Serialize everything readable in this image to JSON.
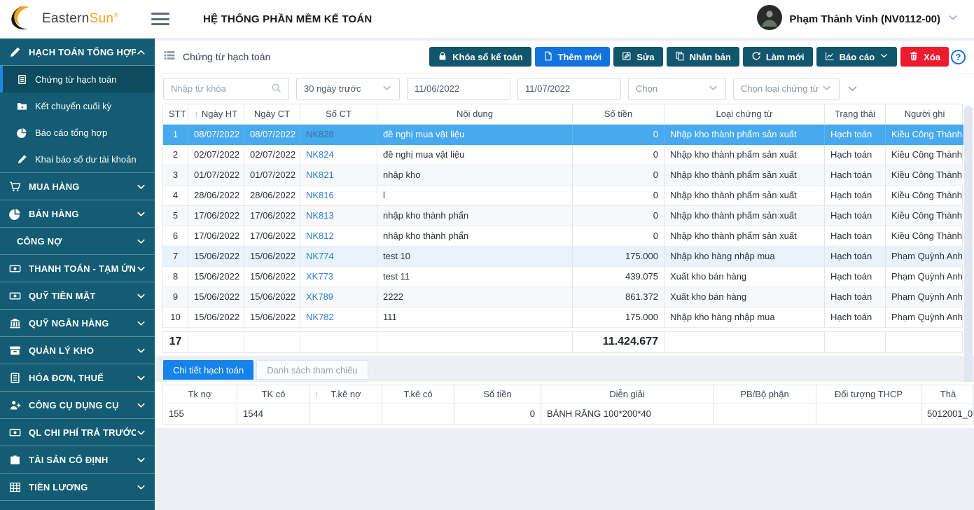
{
  "header": {
    "logo_primary": "Eastern",
    "logo_accent": "Sun",
    "logo_registered": "®",
    "app_title": "HỆ THỐNG PHẦN MỀM KẾ TOÁN",
    "user_name": "Phạm Thành Vinh (NV0112-00)"
  },
  "colors": {
    "sidebar_bg": "#135c74",
    "sidebar_active_bg": "#0d4b5f",
    "sidebar_active_border": "#1e88e5",
    "accent_blue": "#1373dc",
    "tab_blue": "#1583e9",
    "danger_red": "#ee1b2e",
    "teal_button": "#11566d",
    "selected_row": "#47a9ee",
    "highlight_row": "#e7f4fd",
    "link_blue": "#2e7cd6",
    "logo_orange": "#f7a41d"
  },
  "sidebar": {
    "sections": [
      {
        "label": "HẠCH TOÁN TỔNG HỢP",
        "icon": "pencil",
        "expanded": true,
        "children": [
          {
            "label": "Chứng từ hạch toán",
            "icon": "document",
            "active": true
          },
          {
            "label": "Kết chuyển cuối kỳ",
            "icon": "folder",
            "active": false
          },
          {
            "label": "Báo cáo tổng hợp",
            "icon": "pie",
            "active": false
          },
          {
            "label": "Khai báo số dư tài khoản",
            "icon": "pencil",
            "active": false
          }
        ]
      },
      {
        "label": "MUA HÀNG",
        "icon": "cart"
      },
      {
        "label": "BÁN HÀNG",
        "icon": "pie"
      },
      {
        "label": "CÔNG NỢ",
        "icon": "docs"
      },
      {
        "label": "THANH TOÁN - TẠM ỨNG",
        "icon": "money"
      },
      {
        "label": "QUỸ TIỀN MẶT",
        "icon": "money"
      },
      {
        "label": "QUỸ NGÂN HÀNG",
        "icon": "bank"
      },
      {
        "label": "QUẢN LÝ KHO",
        "icon": "warehouse"
      },
      {
        "label": "HÓA ĐƠN, THUẾ",
        "icon": "document"
      },
      {
        "label": "CÔNG CỤ DỤNG CỤ",
        "icon": "tools"
      },
      {
        "label": "QL CHI PHÍ TRẢ TRƯỚC",
        "icon": "money"
      },
      {
        "label": "TÀI SẢN CỐ ĐỊNH",
        "icon": "briefcase"
      },
      {
        "label": "TIỀN LƯƠNG",
        "icon": "grid"
      }
    ]
  },
  "toolbar": {
    "page_title": "Chứng từ hạch toán",
    "buttons": [
      {
        "label": "Khóa sổ kế toán",
        "icon": "lock",
        "style": "teal",
        "chevron": false
      },
      {
        "label": "Thêm mới",
        "icon": "fileplus",
        "style": "blue",
        "chevron": false
      },
      {
        "label": "Sửa",
        "icon": "edit",
        "style": "teal",
        "chevron": false
      },
      {
        "label": "Nhân bản",
        "icon": "copy",
        "style": "teal",
        "chevron": false
      },
      {
        "label": "Làm mới",
        "icon": "refresh",
        "style": "teal",
        "chevron": false
      },
      {
        "label": "Báo cáo",
        "icon": "chart",
        "style": "teal",
        "chevron": true
      },
      {
        "label": "Xóa",
        "icon": "trash",
        "style": "red",
        "chevron": false
      }
    ],
    "help_label": "?"
  },
  "filters": {
    "keyword_placeholder": "Nhập từ khóa",
    "period_value": "30 ngày trước",
    "date_from": "11/06/2022",
    "date_to": "11/07/2022",
    "select_placeholder": "Chọn",
    "doc_type_placeholder": "Chọn loại chứng từ"
  },
  "table": {
    "columns": [
      "STT",
      "Ngày HT",
      "Ngày CT",
      "Số CT",
      "Nội dung",
      "Số tiền",
      "Loại chứng từ",
      "Trạng thái",
      "Người ghi"
    ],
    "sorted_column": "Ngày HT",
    "rows": [
      {
        "stt": "1",
        "ngay_ht": "08/07/2022",
        "ngay_ct": "08/07/2022",
        "so_ct": "NK828",
        "noi_dung": "đề nghị mua vật liệu",
        "so_tien": "0",
        "loai_chung_tu": "Nhập kho thành phẩm sản xuất",
        "trang_thai": "Hạch toán",
        "nguoi_ghi": "Kiều Công Thành",
        "state": "selected"
      },
      {
        "stt": "2",
        "ngay_ht": "02/07/2022",
        "ngay_ct": "02/07/2022",
        "so_ct": "NK824",
        "noi_dung": "đề nghị mua vật liệu",
        "so_tien": "0",
        "loai_chung_tu": "Nhập kho thành phẩm sản xuất",
        "trang_thai": "Hạch toán",
        "nguoi_ghi": "Kiều Công Thành",
        "state": ""
      },
      {
        "stt": "3",
        "ngay_ht": "01/07/2022",
        "ngay_ct": "01/07/2022",
        "so_ct": "NK821",
        "noi_dung": "nhập kho",
        "so_tien": "0",
        "loai_chung_tu": "Nhập kho thành phẩm sản xuất",
        "trang_thai": "Hạch toán",
        "nguoi_ghi": "Kiều Công Thành",
        "state": "zebra"
      },
      {
        "stt": "4",
        "ngay_ht": "28/06/2022",
        "ngay_ct": "28/06/2022",
        "so_ct": "NK816",
        "noi_dung": "l",
        "so_tien": "0",
        "loai_chung_tu": "Nhập kho thành phẩm sản xuất",
        "trang_thai": "Hạch toán",
        "nguoi_ghi": "Kiều Công Thành",
        "state": ""
      },
      {
        "stt": "5",
        "ngay_ht": "17/06/2022",
        "ngay_ct": "17/06/2022",
        "so_ct": "NK813",
        "noi_dung": "nhập kho thành phẩn",
        "so_tien": "0",
        "loai_chung_tu": "Nhập kho thành phẩm sản xuất",
        "trang_thai": "Hạch toán",
        "nguoi_ghi": "Kiều Công Thành",
        "state": "zebra"
      },
      {
        "stt": "6",
        "ngay_ht": "17/06/2022",
        "ngay_ct": "17/06/2022",
        "so_ct": "NK812",
        "noi_dung": "nhập kho thành phẩn",
        "so_tien": "0",
        "loai_chung_tu": "Nhập kho thành phẩm sản xuất",
        "trang_thai": "Hạch toán",
        "nguoi_ghi": "Kiều Công Thành",
        "state": ""
      },
      {
        "stt": "7",
        "ngay_ht": "15/06/2022",
        "ngay_ct": "15/06/2022",
        "so_ct": "NK774",
        "noi_dung": "test 10",
        "so_tien": "175.000",
        "loai_chung_tu": "Nhập kho hàng nhập mua",
        "trang_thai": "Hạch toán",
        "nguoi_ghi": "Phạm Quỳnh Anh",
        "state": "hl"
      },
      {
        "stt": "8",
        "ngay_ht": "15/06/2022",
        "ngay_ct": "15/06/2022",
        "so_ct": "XK773",
        "noi_dung": "test 11",
        "so_tien": "439.075",
        "loai_chung_tu": "Xuất kho bán hàng",
        "trang_thai": "Hạch toán",
        "nguoi_ghi": "Phạm Quỳnh Anh",
        "state": ""
      },
      {
        "stt": "9",
        "ngay_ht": "15/06/2022",
        "ngay_ct": "15/06/2022",
        "so_ct": "XK789",
        "noi_dung": "2222",
        "so_tien": "861.372",
        "loai_chung_tu": "Xuất kho bán hàng",
        "trang_thai": "Hạch toán",
        "nguoi_ghi": "Phạm Quỳnh Anh",
        "state": "zebra"
      },
      {
        "stt": "10",
        "ngay_ht": "15/06/2022",
        "ngay_ct": "15/06/2022",
        "so_ct": "NK782",
        "noi_dung": "111",
        "so_tien": "175.000",
        "loai_chung_tu": "Nhập kho hàng nhập mua",
        "trang_thai": "Hạch toán",
        "nguoi_ghi": "Phạm Quỳnh Anh",
        "state": ""
      }
    ],
    "footer": {
      "count": "17",
      "total": "11.424.677"
    }
  },
  "detail": {
    "tabs": [
      {
        "label": "Chi tiết hạch toán",
        "active": true
      },
      {
        "label": "Danh sách tham chiếu",
        "active": false
      }
    ],
    "columns": [
      "Tk nợ",
      "TK có",
      "T.kê nợ",
      "T.kê có",
      "Số tiền",
      "Diễn giải",
      "PB/Bộ phận",
      "Đối tượng THCP",
      "Thà"
    ],
    "sorted_column": "T.kê nợ",
    "rows": [
      {
        "tk_no": "155",
        "tk_co": "1544",
        "tke_no": "",
        "tke_co": "",
        "so_tien": "0",
        "dien_giai": "BÁNH RĂNG 100*200*40",
        "pb_bo_phan": "",
        "doi_tuong_thcp": "",
        "thanh": "5012001_0"
      }
    ]
  }
}
